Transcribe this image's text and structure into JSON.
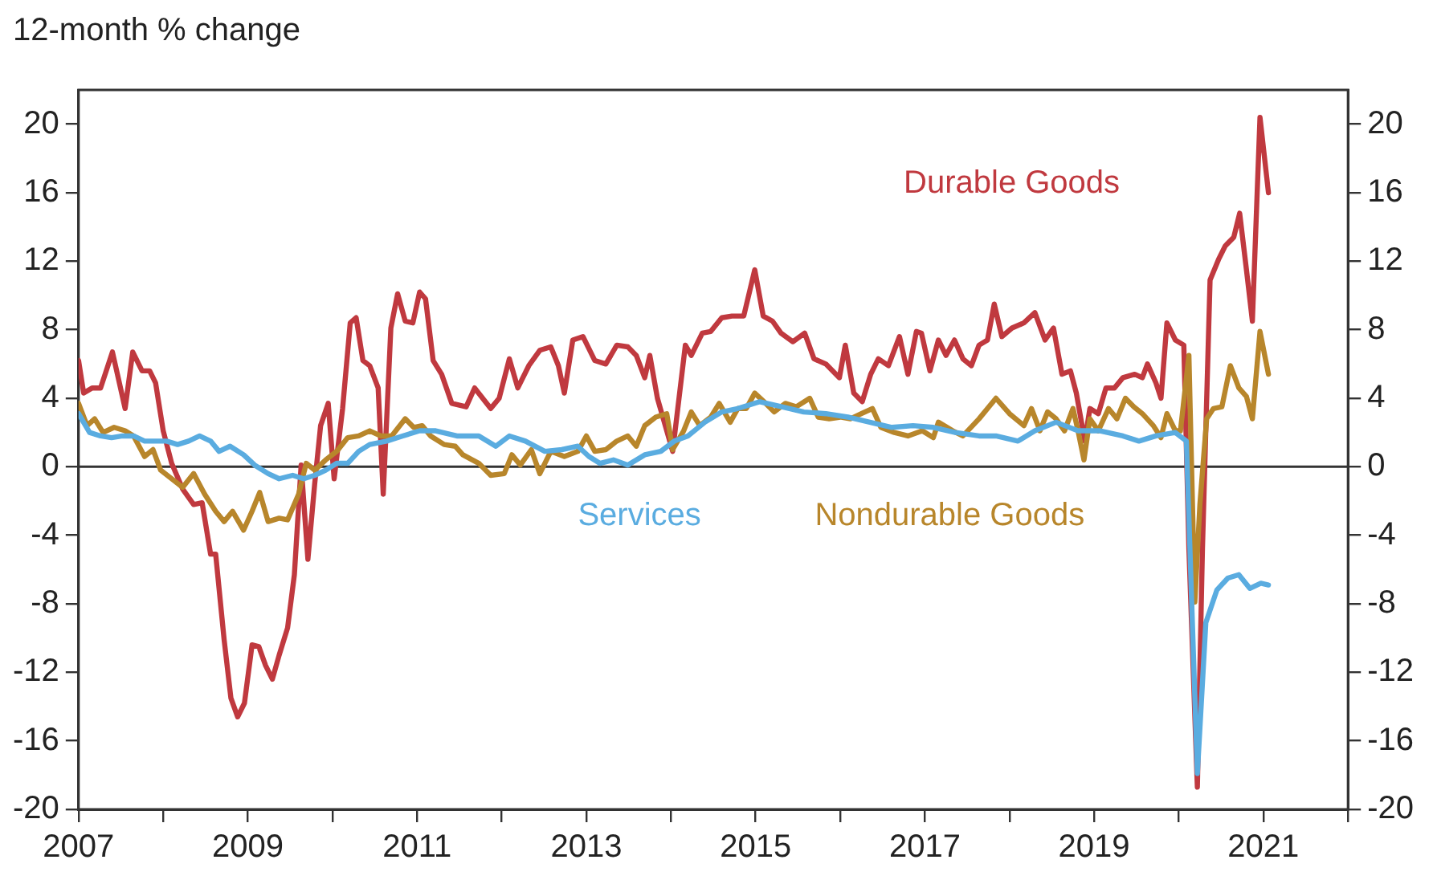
{
  "chart_data": {
    "type": "line",
    "ylabel": "12-month % change",
    "xlim": [
      2007,
      2022
    ],
    "xticks": [
      2007,
      {
        "value": 2008,
        "label": null
      },
      2009,
      {
        "value": 2010,
        "label": null
      },
      2011,
      {
        "value": 2012,
        "label": null
      },
      2013,
      {
        "value": 2014,
        "label": null
      },
      2015,
      {
        "value": 2016,
        "label": null
      },
      2017,
      {
        "value": 2018,
        "label": null
      },
      2019,
      {
        "value": 2020,
        "label": null
      },
      2021,
      {
        "value": 2022,
        "label": null
      }
    ],
    "ylim": [
      -20,
      22
    ],
    "yticks": [
      -20,
      -16,
      -12,
      -8,
      -4,
      0,
      4,
      8,
      12,
      16,
      20
    ],
    "y2lim": [
      -20,
      22
    ],
    "y2ticks": [
      -20,
      -16,
      -12,
      -8,
      -4,
      0,
      4,
      8,
      12,
      16,
      20
    ],
    "grid": false,
    "legend": false,
    "marker": "none",
    "line_style": "solid",
    "ref_lines": [
      {
        "axis": "y",
        "value": 0,
        "color": "#333333"
      }
    ],
    "series": [
      {
        "name": "Durable Goods",
        "color": "#c0393f",
        "x": [
          2007.0,
          2007.06,
          2007.16,
          2007.26,
          2007.4,
          2007.55,
          2007.64,
          2007.75,
          2007.84,
          2007.91,
          2008.0,
          2008.1,
          2008.23,
          2008.36,
          2008.46,
          2008.56,
          2008.62,
          2008.72,
          2008.8,
          2008.88,
          2008.96,
          2009.05,
          2009.13,
          2009.21,
          2009.29,
          2009.37,
          2009.47,
          2009.55,
          2009.63,
          2009.71,
          2009.79,
          2009.86,
          2009.95,
          2010.02,
          2010.12,
          2010.21,
          2010.28,
          2010.36,
          2010.44,
          2010.54,
          2010.6,
          2010.69,
          2010.77,
          2010.86,
          2010.95,
          2011.03,
          2011.1,
          2011.19,
          2011.29,
          2011.41,
          2011.58,
          2011.68,
          2011.87,
          2011.97,
          2012.09,
          2012.19,
          2012.32,
          2012.45,
          2012.58,
          2012.67,
          2012.74,
          2012.84,
          2012.96,
          2013.1,
          2013.23,
          2013.36,
          2013.49,
          2013.59,
          2013.69,
          2013.75,
          2013.84,
          2014.02,
          2014.17,
          2014.24,
          2014.37,
          2014.47,
          2014.6,
          2014.72,
          2014.86,
          2014.99,
          2015.09,
          2015.2,
          2015.3,
          2015.44,
          2015.58,
          2015.69,
          2015.83,
          2015.99,
          2016.06,
          2016.16,
          2016.26,
          2016.36,
          2016.45,
          2016.57,
          2016.7,
          2016.8,
          2016.9,
          2016.96,
          2017.06,
          2017.16,
          2017.25,
          2017.35,
          2017.45,
          2017.55,
          2017.64,
          2017.74,
          2017.82,
          2017.91,
          2018.03,
          2018.17,
          2018.3,
          2018.42,
          2018.52,
          2018.62,
          2018.72,
          2018.79,
          2018.89,
          2018.95,
          2019.05,
          2019.14,
          2019.24,
          2019.34,
          2019.48,
          2019.57,
          2019.63,
          2019.73,
          2019.79,
          2019.86,
          2019.96,
          2020.06,
          2020.12,
          2020.22,
          2020.28,
          2020.37,
          2020.47,
          2020.55,
          2020.65,
          2020.72,
          2020.8,
          2020.87,
          2020.96,
          2021.06
        ],
        "values": [
          6.2,
          4.3,
          4.6,
          4.6,
          6.7,
          3.4,
          6.7,
          5.6,
          5.6,
          4.9,
          2.1,
          0.2,
          -1.3,
          -2.2,
          -2.1,
          -5.1,
          -5.1,
          -10.1,
          -13.5,
          -14.6,
          -13.8,
          -10.4,
          -10.5,
          -11.6,
          -12.4,
          -11,
          -9.4,
          -6.3,
          0.1,
          -5.4,
          -1,
          2.4,
          3.7,
          -0.7,
          3.4,
          8.4,
          8.7,
          6.2,
          5.9,
          4.6,
          -1.6,
          8.1,
          10.1,
          8.5,
          8.4,
          10.2,
          9.8,
          6.2,
          5.4,
          3.7,
          3.5,
          4.6,
          3.4,
          4.0,
          6.3,
          4.6,
          5.9,
          6.8,
          7.0,
          5.9,
          4.3,
          7.4,
          7.6,
          6.2,
          6.0,
          7.1,
          7.0,
          6.5,
          5.2,
          6.5,
          4.0,
          0.9,
          7.1,
          6.5,
          7.8,
          7.9,
          8.7,
          8.8,
          8.8,
          11.5,
          8.8,
          8.5,
          7.8,
          7.3,
          7.8,
          6.3,
          6.0,
          5.2,
          7.1,
          4.3,
          3.8,
          5.4,
          6.3,
          5.9,
          7.6,
          5.4,
          7.9,
          7.8,
          5.6,
          7.4,
          6.5,
          7.4,
          6.3,
          5.9,
          7.1,
          7.4,
          9.5,
          7.6,
          8.1,
          8.4,
          9.0,
          7.4,
          8.1,
          5.4,
          5.6,
          4.3,
          1.5,
          3.4,
          3.1,
          4.6,
          4.6,
          5.2,
          5.4,
          5.2,
          6.0,
          4.9,
          4.0,
          8.4,
          7.4,
          7.1,
          -4.8,
          -18.7,
          -4.8,
          10.9,
          12.1,
          12.9,
          13.4,
          14.8,
          11.5,
          8.5,
          20.4,
          16.0
        ]
      },
      {
        "name": "Nondurable Goods",
        "color": "#b8862b",
        "x": [
          2007.0,
          2007.1,
          2007.19,
          2007.29,
          2007.42,
          2007.55,
          2007.65,
          2007.78,
          2007.88,
          2007.97,
          2008.1,
          2008.23,
          2008.36,
          2008.49,
          2008.62,
          2008.72,
          2008.82,
          2008.95,
          2009.05,
          2009.14,
          2009.24,
          2009.37,
          2009.47,
          2009.6,
          2009.69,
          2009.79,
          2009.92,
          2010.05,
          2010.18,
          2010.31,
          2010.44,
          2010.57,
          2010.7,
          2010.86,
          2010.96,
          2011.06,
          2011.16,
          2011.32,
          2011.45,
          2011.54,
          2011.73,
          2011.87,
          2012.03,
          2012.12,
          2012.22,
          2012.35,
          2012.45,
          2012.58,
          2012.74,
          2012.9,
          2013.0,
          2013.1,
          2013.23,
          2013.36,
          2013.49,
          2013.59,
          2013.69,
          2013.82,
          2013.95,
          2014.02,
          2014.15,
          2014.24,
          2014.34,
          2014.47,
          2014.57,
          2014.7,
          2014.79,
          2014.89,
          2014.99,
          2015.12,
          2015.22,
          2015.35,
          2015.48,
          2015.64,
          2015.74,
          2015.87,
          2016.0,
          2016.12,
          2016.25,
          2016.38,
          2016.48,
          2016.64,
          2016.8,
          2016.97,
          2017.1,
          2017.16,
          2017.33,
          2017.45,
          2017.64,
          2017.84,
          2018.0,
          2018.17,
          2018.26,
          2018.36,
          2018.45,
          2018.55,
          2018.65,
          2018.75,
          2018.81,
          2018.88,
          2018.95,
          2019.05,
          2019.17,
          2019.27,
          2019.37,
          2019.47,
          2019.57,
          2019.7,
          2019.79,
          2019.86,
          2019.96,
          2020.02,
          2020.12,
          2020.19,
          2020.25,
          2020.33,
          2020.41,
          2020.51,
          2020.61,
          2020.71,
          2020.8,
          2020.87,
          2020.96,
          2021.06
        ],
        "values": [
          3.7,
          2.4,
          2.8,
          2.0,
          2.3,
          2.1,
          1.8,
          0.6,
          1.0,
          -0.2,
          -0.7,
          -1.2,
          -0.4,
          -1.6,
          -2.6,
          -3.2,
          -2.6,
          -3.7,
          -2.6,
          -1.5,
          -3.2,
          -3.0,
          -3.1,
          -1.6,
          0.2,
          -0.2,
          0.4,
          0.9,
          1.7,
          1.8,
          2.1,
          1.8,
          1.8,
          2.8,
          2.3,
          2.4,
          1.8,
          1.3,
          1.2,
          0.7,
          0.2,
          -0.5,
          -0.4,
          0.7,
          0.1,
          1.0,
          -0.4,
          0.9,
          0.6,
          0.9,
          1.8,
          0.9,
          1.0,
          1.5,
          1.8,
          1.2,
          2.4,
          2.9,
          3.1,
          1.0,
          2.1,
          3.2,
          2.4,
          2.9,
          3.7,
          2.6,
          3.4,
          3.4,
          4.3,
          3.7,
          3.2,
          3.7,
          3.5,
          4.0,
          2.9,
          2.8,
          2.9,
          2.8,
          3.1,
          3.4,
          2.3,
          2.0,
          1.8,
          2.1,
          1.7,
          2.6,
          2.1,
          1.8,
          2.8,
          4.0,
          3.1,
          2.4,
          3.4,
          2.1,
          3.2,
          2.8,
          2.1,
          3.4,
          2.1,
          0.4,
          2.8,
          2.1,
          3.4,
          2.8,
          4.0,
          3.5,
          3.1,
          2.4,
          1.7,
          3.1,
          2.1,
          2.1,
          6.5,
          -7.9,
          -2.2,
          2.8,
          3.4,
          3.5,
          5.9,
          4.6,
          4.1,
          2.8,
          7.9,
          5.4
        ]
      },
      {
        "name": "Services",
        "color": "#5aace0",
        "x": [
          2007.0,
          2007.13,
          2007.26,
          2007.39,
          2007.52,
          2007.65,
          2007.78,
          2007.91,
          2008.04,
          2008.17,
          2008.3,
          2008.43,
          2008.56,
          2008.66,
          2008.79,
          2008.95,
          2009.08,
          2009.24,
          2009.37,
          2009.53,
          2009.66,
          2009.79,
          2009.92,
          2010.05,
          2010.18,
          2010.31,
          2010.44,
          2010.64,
          2010.83,
          2011.03,
          2011.22,
          2011.47,
          2011.73,
          2011.93,
          2012.09,
          2012.28,
          2012.51,
          2012.71,
          2012.9,
          2013.03,
          2013.16,
          2013.32,
          2013.49,
          2013.69,
          2013.88,
          2014.04,
          2014.2,
          2014.4,
          2014.6,
          2014.79,
          2015.05,
          2015.31,
          2015.57,
          2015.83,
          2016.09,
          2016.35,
          2016.61,
          2016.86,
          2017.1,
          2017.36,
          2017.64,
          2017.84,
          2018.1,
          2018.3,
          2018.55,
          2018.81,
          2019.07,
          2019.34,
          2019.53,
          2019.73,
          2019.96,
          2020.09,
          2020.22,
          2020.32,
          2020.45,
          2020.58,
          2020.71,
          2020.84,
          2020.97,
          2021.06
        ],
        "values": [
          3.1,
          2.0,
          1.8,
          1.7,
          1.8,
          1.8,
          1.5,
          1.5,
          1.5,
          1.3,
          1.5,
          1.8,
          1.5,
          0.9,
          1.2,
          0.7,
          0.1,
          -0.4,
          -0.7,
          -0.5,
          -0.7,
          -0.5,
          -0.2,
          0.2,
          0.2,
          0.9,
          1.3,
          1.5,
          1.8,
          2.1,
          2.1,
          1.8,
          1.8,
          1.2,
          1.8,
          1.5,
          0.9,
          1.0,
          1.2,
          0.6,
          0.2,
          0.4,
          0.1,
          0.7,
          0.9,
          1.5,
          1.8,
          2.6,
          3.2,
          3.4,
          3.8,
          3.5,
          3.2,
          3.1,
          2.9,
          2.6,
          2.3,
          2.4,
          2.3,
          2.0,
          1.8,
          1.8,
          1.5,
          2.1,
          2.6,
          2.1,
          2.1,
          1.8,
          1.5,
          1.8,
          2.0,
          1.5,
          -17.9,
          -9.1,
          -7.2,
          -6.5,
          -6.3,
          -7.1,
          -6.8,
          -6.9
        ]
      }
    ]
  }
}
